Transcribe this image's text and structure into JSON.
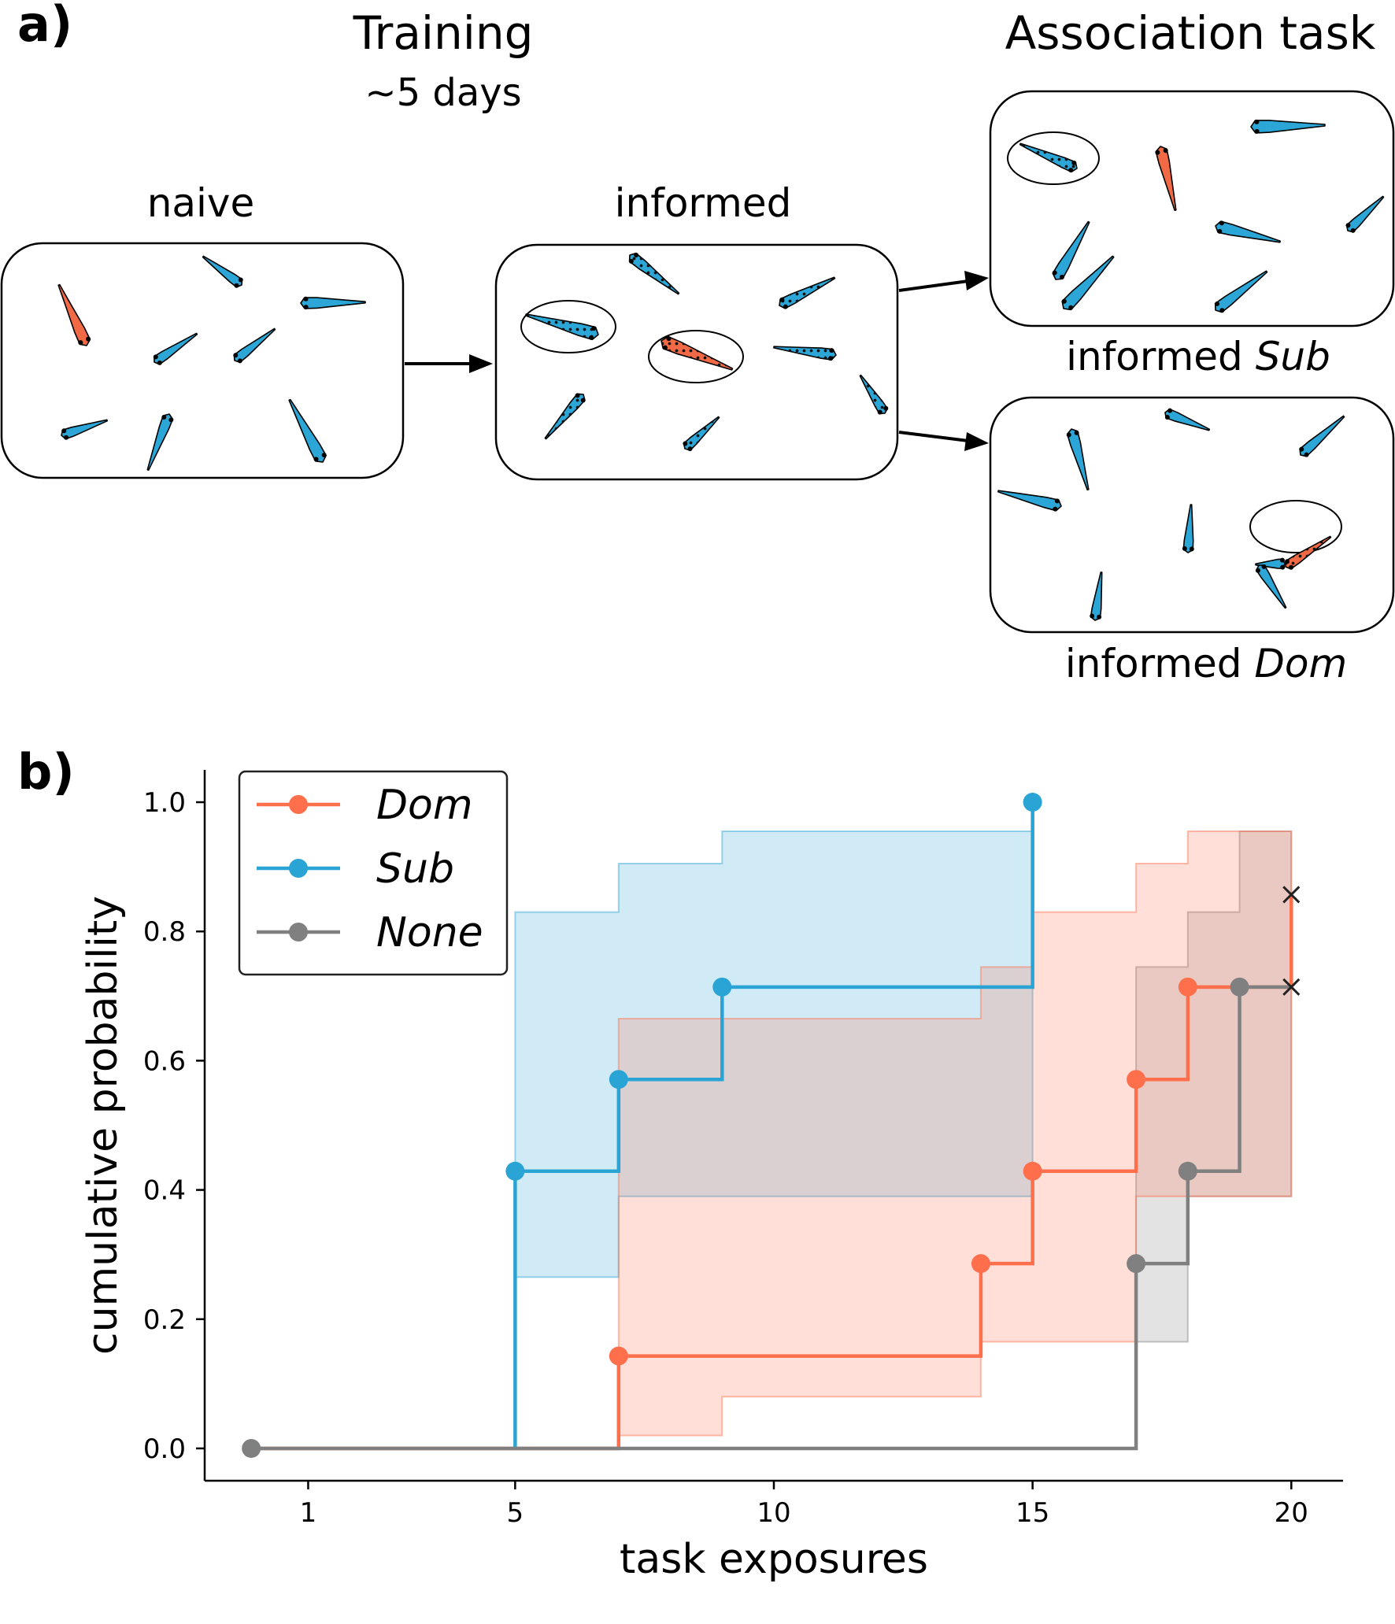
{
  "panel_a": {
    "label": "a)",
    "training_title": "Training",
    "training_duration": "~5 days",
    "association_title": "Association task",
    "naive_label": "naive",
    "informed_label": "informed",
    "informed_sub_prefix": "informed ",
    "informed_sub_italic": "Sub",
    "informed_dom_prefix": "informed ",
    "informed_dom_italic": "Dom",
    "colors": {
      "blue_fish": "#2ba6d6",
      "orange_fish": "#f26a45"
    }
  },
  "panel_b": {
    "label": "b)"
  },
  "chart_data": {
    "type": "line",
    "step": "post",
    "xlabel": "task exposures",
    "ylabel": "cumulative probability",
    "xlim": [
      -1,
      21
    ],
    "ylim": [
      -0.05,
      1.05
    ],
    "xticks": [
      1,
      5,
      10,
      15,
      20
    ],
    "yticks": [
      0.0,
      0.2,
      0.4,
      0.6,
      0.8,
      1.0
    ],
    "ytick_labels": [
      "0.0",
      "0.2",
      "0.4",
      "0.6",
      "0.8",
      "1.0"
    ],
    "legend_position": "top-left",
    "series": [
      {
        "name": "Dom",
        "color": "#ff6f4c",
        "steps": [
          [
            -0.1,
            0.0
          ],
          [
            7,
            0.143
          ],
          [
            14,
            0.286
          ],
          [
            15,
            0.429
          ],
          [
            17,
            0.571
          ],
          [
            18,
            0.714
          ],
          [
            20,
            0.857
          ]
        ],
        "markers": [
          [
            7,
            0.143
          ],
          [
            14,
            0.286
          ],
          [
            15,
            0.429
          ],
          [
            17,
            0.571
          ],
          [
            18,
            0.714
          ]
        ],
        "censor": [
          20,
          0.857
        ],
        "ci_x": [
          7,
          9,
          14,
          15,
          17,
          18,
          20
        ],
        "ci_lower": [
          0.02,
          0.02,
          0.08,
          0.165,
          0.165,
          0.39,
          0.39
        ],
        "ci_upper": [
          0.665,
          0.665,
          0.745,
          0.83,
          0.905,
          0.955,
          1.0
        ]
      },
      {
        "name": "Sub",
        "color": "#2aa4d4",
        "steps": [
          [
            5,
            0.0
          ],
          [
            5,
            0.429
          ],
          [
            7,
            0.571
          ],
          [
            9,
            0.714
          ],
          [
            15,
            1.0
          ]
        ],
        "markers": [
          [
            5,
            0.429
          ],
          [
            7,
            0.571
          ],
          [
            9,
            0.714
          ],
          [
            15,
            1.0
          ]
        ],
        "ci_x": [
          5,
          7,
          9,
          15
        ],
        "ci_lower": [
          0.165,
          0.265,
          0.39,
          0.39
        ],
        "ci_upper": [
          0.83,
          0.905,
          0.955,
          0.955
        ]
      },
      {
        "name": "None",
        "color": "#808080",
        "steps": [
          [
            -0.1,
            0.0
          ],
          [
            17,
            0.286
          ],
          [
            18,
            0.429
          ],
          [
            19,
            0.714
          ],
          [
            20,
            0.714
          ]
        ],
        "markers": [
          [
            -0.1,
            0.0
          ],
          [
            17,
            0.286
          ],
          [
            18,
            0.429
          ],
          [
            19,
            0.714
          ]
        ],
        "censor": [
          20,
          0.714
        ],
        "ci_x": [
          17,
          18,
          19,
          20
        ],
        "ci_lower": [
          0.08,
          0.165,
          0.39,
          0.39
        ],
        "ci_upper": [
          0.745,
          0.83,
          0.955,
          0.955
        ]
      }
    ]
  }
}
